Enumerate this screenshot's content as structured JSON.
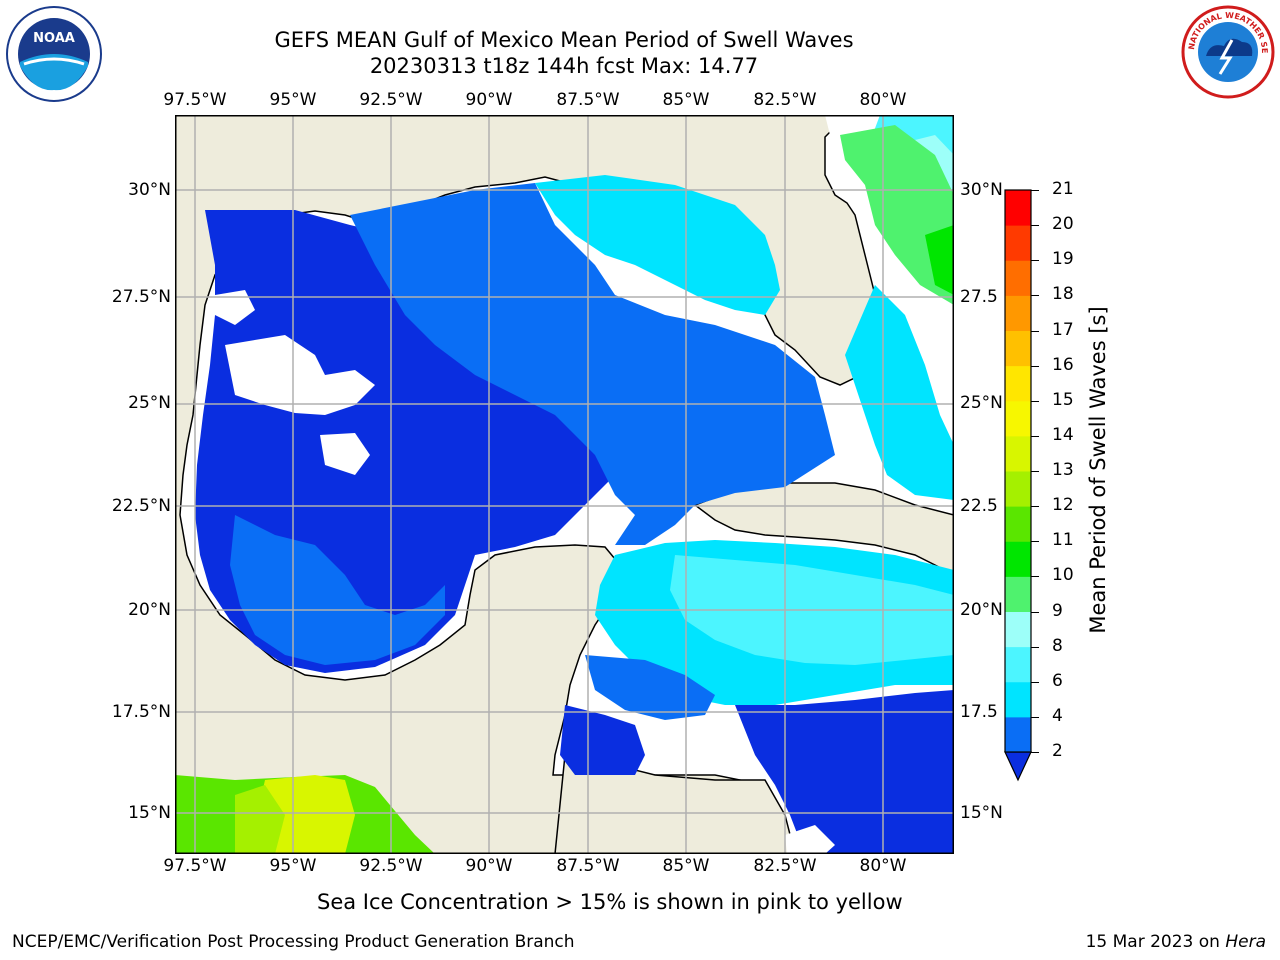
{
  "title": {
    "line1": "GEFS MEAN Gulf of Mexico Mean Period of Swell Waves",
    "line2": "20230313 t18z 144h fcst   Max: 14.77"
  },
  "map": {
    "lon_labels": [
      "97.5°W",
      "95°W",
      "92.5°W",
      "90°W",
      "87.5°W",
      "85°W",
      "82.5°W",
      "80°W"
    ],
    "lat_labels": [
      "30°N",
      "27.5°N",
      "25°N",
      "22.5°N",
      "20°N",
      "17.5°N",
      "15°N"
    ],
    "right_lat_labels": [
      "30°N",
      "27.5",
      "25°N",
      "22.5",
      "20°N",
      "17.5",
      "15°N"
    ],
    "gridlines": true,
    "land_color": "#eeecdc",
    "background_color": "#ffffff"
  },
  "colorbar": {
    "label": "Mean Period of Swell Waves [s]",
    "ticks": [
      "2",
      "4",
      "6",
      "8",
      "9",
      "10",
      "11",
      "12",
      "13",
      "14",
      "15",
      "16",
      "17",
      "18",
      "19",
      "20",
      "21"
    ],
    "colors": [
      "#0a2ee0",
      "#0a6ef5",
      "#00e4ff",
      "#4cf5ff",
      "#9dfff9",
      "#4ff26e",
      "#00e600",
      "#5ae600",
      "#a5f000",
      "#d8f600",
      "#f7f700",
      "#ffe600",
      "#ffc000",
      "#ff9800",
      "#ff6e00",
      "#ff3a00",
      "#ff0000"
    ]
  },
  "ice_note": "Sea Ice Concentration > 15% is shown in pink to yellow",
  "footer": {
    "left": "NCEP/EMC/Verification Post Processing Product Generation Branch",
    "right_date": "15 Mar 2023 on ",
    "right_machine": "Hera"
  },
  "logos": {
    "noaa_text": "NOAA",
    "nws_text": "NATIONAL WEATHER SERVICE"
  }
}
